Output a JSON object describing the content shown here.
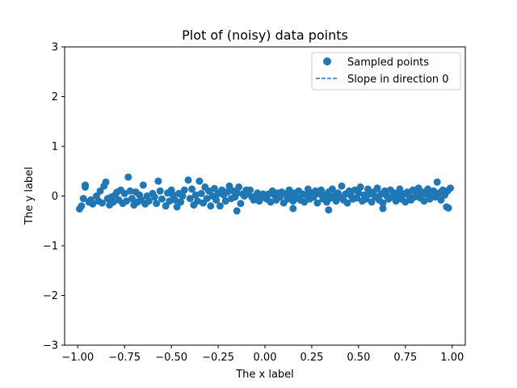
{
  "chart_data": {
    "type": "scatter",
    "title": "Plot of (noisy) data points",
    "xlabel": "The x label",
    "ylabel": "The y label",
    "xlim": [
      -1.07,
      1.07
    ],
    "ylim": [
      -3,
      3
    ],
    "grid": false,
    "legend_position": "top-right",
    "color": "#1f77b4",
    "xticks": [
      -1.0,
      -0.75,
      -0.5,
      -0.25,
      0.0,
      0.25,
      0.5,
      0.75,
      1.0
    ],
    "xtick_labels": [
      "−1.00",
      "−0.75",
      "−0.50",
      "−0.25",
      "0.00",
      "0.25",
      "0.50",
      "0.75",
      "1.00"
    ],
    "yticks": [
      -3,
      -2,
      -1,
      0,
      1,
      2,
      3
    ],
    "ytick_labels": [
      "−3",
      "−2",
      "−1",
      "0",
      "1",
      "2",
      "3"
    ],
    "series": [
      {
        "name": "Sampled points",
        "kind": "scatter",
        "points": [
          [
            -0.99,
            -0.26
          ],
          [
            -0.98,
            -0.2
          ],
          [
            -0.97,
            -0.05
          ],
          [
            -0.96,
            0.18
          ],
          [
            -0.96,
            0.22
          ],
          [
            -0.94,
            -0.12
          ],
          [
            -0.93,
            -0.08
          ],
          [
            -0.92,
            -0.16
          ],
          [
            -0.9,
            0.0
          ],
          [
            -0.89,
            -0.1
          ],
          [
            -0.88,
            0.1
          ],
          [
            -0.87,
            -0.14
          ],
          [
            -0.86,
            0.2
          ],
          [
            -0.85,
            0.28
          ],
          [
            -0.84,
            -0.05
          ],
          [
            -0.83,
            -0.18
          ],
          [
            -0.82,
            -0.02
          ],
          [
            -0.81,
            -0.12
          ],
          [
            -0.8,
            0.02
          ],
          [
            -0.79,
            0.08
          ],
          [
            -0.78,
            -0.08
          ],
          [
            -0.77,
            0.12
          ],
          [
            -0.76,
            -0.15
          ],
          [
            -0.75,
            0.05
          ],
          [
            -0.74,
            -0.1
          ],
          [
            -0.73,
            0.38
          ],
          [
            -0.72,
            0.1
          ],
          [
            -0.71,
            -0.05
          ],
          [
            -0.7,
            -0.18
          ],
          [
            -0.69,
            0.08
          ],
          [
            -0.68,
            -0.12
          ],
          [
            -0.67,
            0.02
          ],
          [
            -0.66,
            -0.08
          ],
          [
            -0.65,
            0.22
          ],
          [
            -0.64,
            -0.16
          ],
          [
            -0.63,
            0.0
          ],
          [
            -0.62,
            -0.1
          ],
          [
            -0.6,
            0.05
          ],
          [
            -0.59,
            -0.02
          ],
          [
            -0.58,
            -0.15
          ],
          [
            -0.56,
            0.1
          ],
          [
            -0.55,
            -0.06
          ],
          [
            -0.53,
            -0.2
          ],
          [
            -0.52,
            0.06
          ],
          [
            -0.51,
            -0.1
          ],
          [
            -0.5,
            0.12
          ],
          [
            -0.49,
            0.02
          ],
          [
            -0.48,
            -0.08
          ],
          [
            -0.47,
            -0.22
          ],
          [
            -0.46,
            0.05
          ],
          [
            -0.45,
            -0.12
          ],
          [
            -0.44,
            0.0
          ],
          [
            -0.43,
            0.12
          ],
          [
            -0.41,
            0.32
          ],
          [
            -0.4,
            -0.05
          ],
          [
            -0.39,
            0.14
          ],
          [
            -0.38,
            -0.18
          ],
          [
            -0.37,
            0.02
          ],
          [
            -0.36,
            -0.1
          ],
          [
            -0.35,
            0.3
          ],
          [
            -0.34,
            0.05
          ],
          [
            -0.33,
            -0.14
          ],
          [
            -0.32,
            0.18
          ],
          [
            -0.31,
            -0.05
          ],
          [
            -0.3,
            0.1
          ],
          [
            -0.29,
            -0.2
          ],
          [
            -0.28,
            0.0
          ],
          [
            -0.27,
            0.15
          ],
          [
            -0.26,
            -0.08
          ],
          [
            -0.25,
            0.05
          ],
          [
            -0.24,
            -0.2
          ],
          [
            -0.23,
            0.12
          ],
          [
            -0.22,
            0.02
          ],
          [
            -0.21,
            -0.1
          ],
          [
            -0.2,
            0.08
          ],
          [
            -0.19,
            0.2
          ],
          [
            -0.18,
            -0.05
          ],
          [
            -0.17,
            0.1
          ],
          [
            -0.16,
            -0.02
          ],
          [
            -0.15,
            0.06
          ],
          [
            -0.14,
            0.18
          ],
          [
            -0.13,
            -0.15
          ],
          [
            -0.12,
            0.04
          ],
          [
            -0.11,
            0.0
          ],
          [
            -0.1,
            0.12
          ],
          [
            -0.09,
            0.05
          ],
          [
            -0.08,
            0.12
          ],
          [
            -0.07,
            -0.02
          ],
          [
            -0.06,
            -0.08
          ],
          [
            -0.05,
            0.0
          ],
          [
            -0.04,
            0.06
          ],
          [
            -0.03,
            -0.1
          ],
          [
            -0.02,
            -0.04
          ],
          [
            -0.01,
            0.04
          ],
          [
            0.0,
            0.0
          ],
          [
            0.01,
            -0.06
          ],
          [
            0.02,
            0.04
          ],
          [
            0.03,
            -0.12
          ],
          [
            0.04,
            0.1
          ],
          [
            0.05,
            0.02
          ],
          [
            0.06,
            -0.08
          ],
          [
            0.07,
            0.06
          ],
          [
            0.08,
            -0.02
          ],
          [
            0.09,
            0.08
          ],
          [
            0.1,
            -0.14
          ],
          [
            0.11,
            0.04
          ],
          [
            0.12,
            -0.06
          ],
          [
            0.13,
            0.12
          ],
          [
            0.14,
            0.0
          ],
          [
            0.15,
            -0.1
          ],
          [
            0.16,
            0.06
          ],
          [
            0.17,
            -0.04
          ],
          [
            0.18,
            0.1
          ],
          [
            0.19,
            -0.08
          ],
          [
            0.2,
            0.04
          ],
          [
            0.21,
            -0.12
          ],
          [
            0.22,
            0.02
          ],
          [
            0.23,
            0.14
          ],
          [
            0.24,
            -0.06
          ],
          [
            0.25,
            0.06
          ],
          [
            0.26,
            -0.02
          ],
          [
            0.27,
            0.1
          ],
          [
            0.28,
            -0.14
          ],
          [
            0.29,
            0.04
          ],
          [
            0.3,
            0.12
          ],
          [
            0.31,
            -0.06
          ],
          [
            0.32,
            0.02
          ],
          [
            0.33,
            -0.12
          ],
          [
            0.34,
            0.08
          ],
          [
            0.35,
            -0.04
          ],
          [
            0.36,
            0.14
          ],
          [
            0.37,
            0.0
          ],
          [
            0.38,
            -0.1
          ],
          [
            0.39,
            0.06
          ],
          [
            0.4,
            -0.02
          ],
          [
            0.41,
            0.2
          ],
          [
            0.42,
            -0.08
          ],
          [
            0.43,
            0.04
          ],
          [
            0.44,
            -0.14
          ],
          [
            0.45,
            0.1
          ],
          [
            0.46,
            0.0
          ],
          [
            0.47,
            -0.06
          ],
          [
            0.48,
            0.12
          ],
          [
            0.49,
            -0.04
          ],
          [
            0.5,
            0.06
          ],
          [
            0.51,
            0.18
          ],
          [
            0.52,
            -0.1
          ],
          [
            0.53,
            0.02
          ],
          [
            0.54,
            -0.06
          ],
          [
            0.55,
            0.14
          ],
          [
            0.56,
            0.04
          ],
          [
            0.57,
            -0.12
          ],
          [
            0.58,
            0.08
          ],
          [
            0.59,
            -0.02
          ],
          [
            0.6,
            0.16
          ],
          [
            0.61,
            -0.08
          ],
          [
            0.62,
            0.04
          ],
          [
            0.63,
            -0.14
          ],
          [
            0.64,
            0.1
          ],
          [
            0.65,
            0.0
          ],
          [
            0.66,
            -0.06
          ],
          [
            0.67,
            0.12
          ],
          [
            0.68,
            -0.02
          ],
          [
            0.69,
            0.06
          ],
          [
            0.7,
            -0.1
          ],
          [
            0.71,
            0.02
          ],
          [
            0.72,
            0.14
          ],
          [
            0.73,
            -0.06
          ],
          [
            0.74,
            0.04
          ],
          [
            0.75,
            -0.12
          ],
          [
            0.76,
            0.08
          ],
          [
            0.77,
            0.0
          ],
          [
            0.78,
            -0.08
          ],
          [
            0.79,
            0.12
          ],
          [
            0.8,
            -0.02
          ],
          [
            0.81,
            0.06
          ],
          [
            0.82,
            0.16
          ],
          [
            0.83,
            -0.04
          ],
          [
            0.84,
            0.08
          ],
          [
            0.85,
            -0.1
          ],
          [
            0.86,
            0.04
          ],
          [
            0.87,
            0.14
          ],
          [
            0.88,
            -0.06
          ],
          [
            0.89,
            0.02
          ],
          [
            0.9,
            0.1
          ],
          [
            0.91,
            -0.02
          ],
          [
            0.92,
            0.28
          ],
          [
            0.93,
            0.06
          ],
          [
            0.94,
            -0.08
          ],
          [
            0.95,
            0.12
          ],
          [
            0.96,
            0.02
          ],
          [
            0.97,
            -0.22
          ],
          [
            0.975,
            0.1
          ],
          [
            0.98,
            -0.24
          ],
          [
            0.99,
            0.16
          ],
          [
            -0.15,
            -0.3
          ],
          [
            0.15,
            -0.25
          ],
          [
            0.63,
            -0.25
          ],
          [
            -0.57,
            0.3
          ],
          [
            0.34,
            -0.28
          ]
        ]
      },
      {
        "name": "Slope in direction 0",
        "kind": "line",
        "dashed": true,
        "points": []
      }
    ]
  }
}
